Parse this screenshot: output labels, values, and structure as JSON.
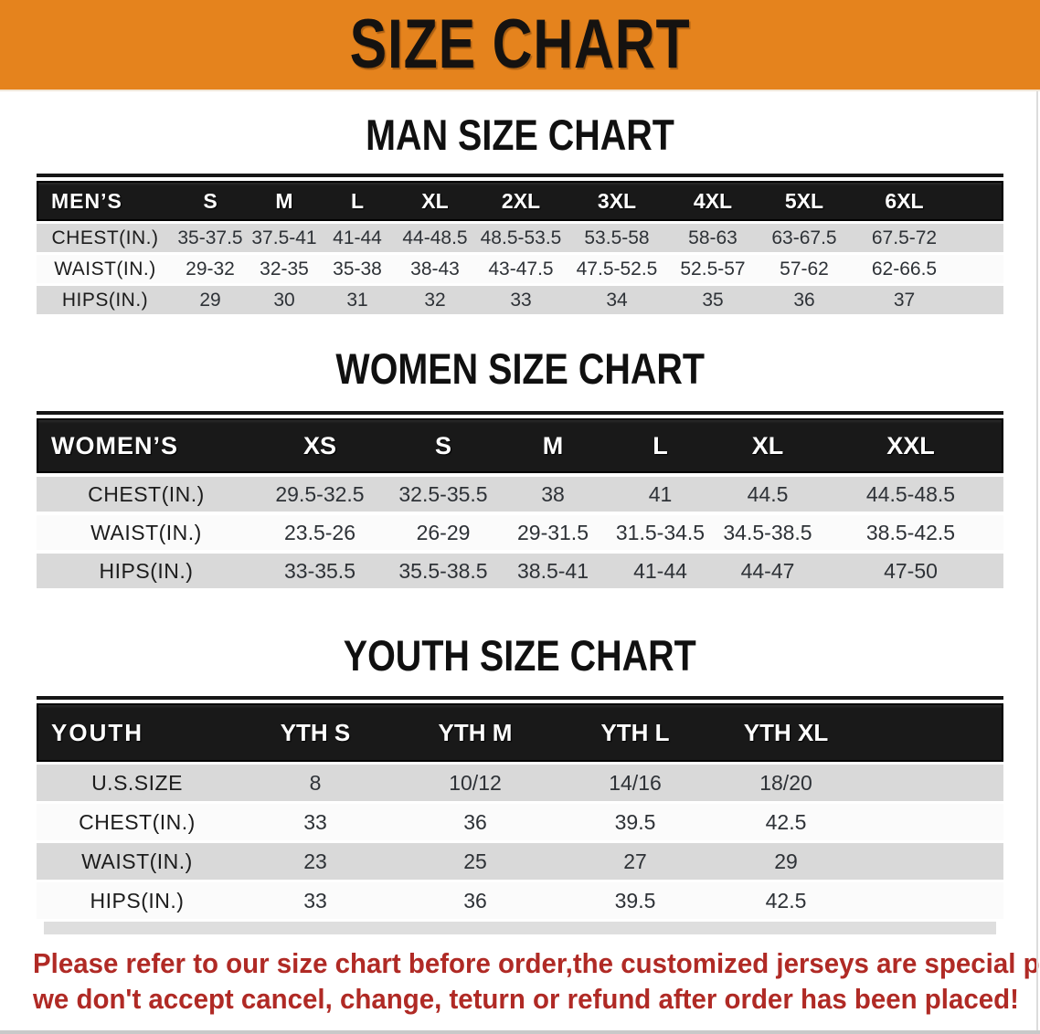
{
  "banner": {
    "title": "SIZE CHART",
    "bg_color": "#E5831D"
  },
  "sections": {
    "men": {
      "heading": "MAN SIZE CHART",
      "table": {
        "corner_label": "MEN’S",
        "columns": [
          "S",
          "M",
          "L",
          "XL",
          "2XL",
          "3XL",
          "4XL",
          "5XL",
          "6XL"
        ],
        "rows": [
          {
            "label": "CHEST(IN.)",
            "values": [
              "35-37.5",
              "37.5-41",
              "41-44",
              "44-48.5",
              "48.5-53.5",
              "53.5-58",
              "58-63",
              "63-67.5",
              "67.5-72"
            ]
          },
          {
            "label": "WAIST(IN.)",
            "values": [
              "29-32",
              "32-35",
              "35-38",
              "38-43",
              "43-47.5",
              "47.5-52.5",
              "52.5-57",
              "57-62",
              "62-66.5"
            ]
          },
          {
            "label": "HIPS(IN.)",
            "values": [
              "29",
              "30",
              "31",
              "32",
              "33",
              "34",
              "35",
              "36",
              "37"
            ]
          }
        ]
      }
    },
    "women": {
      "heading": "WOMEN SIZE CHART",
      "table": {
        "corner_label": "WOMEN’S",
        "columns": [
          "XS",
          "S",
          "M",
          "L",
          "XL",
          "XXL"
        ],
        "rows": [
          {
            "label": "CHEST(IN.)",
            "values": [
              "29.5-32.5",
              "32.5-35.5",
              "38",
              "41",
              "44.5",
              "44.5-48.5"
            ]
          },
          {
            "label": "WAIST(IN.)",
            "values": [
              "23.5-26",
              "26-29",
              "29-31.5",
              "31.5-34.5",
              "34.5-38.5",
              "38.5-42.5"
            ]
          },
          {
            "label": "HIPS(IN.)",
            "values": [
              "33-35.5",
              "35.5-38.5",
              "38.5-41",
              "41-44",
              "44-47",
              "47-50"
            ]
          }
        ]
      }
    },
    "youth": {
      "heading": "YOUTH SIZE CHART",
      "table": {
        "corner_label": "YOUTH",
        "columns": [
          "YTH S",
          "YTH M",
          "YTH L",
          "YTH XL"
        ],
        "rows": [
          {
            "label": "U.S.SIZE",
            "values": [
              "8",
              "10/12",
              "14/16",
              "18/20"
            ]
          },
          {
            "label": "CHEST(IN.)",
            "values": [
              "33",
              "36",
              "39.5",
              "42.5"
            ]
          },
          {
            "label": "WAIST(IN.)",
            "values": [
              "23",
              "25",
              "27",
              "29"
            ]
          },
          {
            "label": "HIPS(IN.)",
            "values": [
              "33",
              "36",
              "39.5",
              "42.5"
            ]
          }
        ]
      }
    }
  },
  "footer": {
    "line1": "Please refer to our size chart before order,the customized jerseys are special products,",
    "line2": "we don't accept cancel, change, teturn or refund after order has been placed!",
    "text_color": "#B02A25"
  },
  "colors": {
    "header_bar": "#191919",
    "row_shade": "#D9D9D9",
    "row_light": "#FBFBFB"
  }
}
